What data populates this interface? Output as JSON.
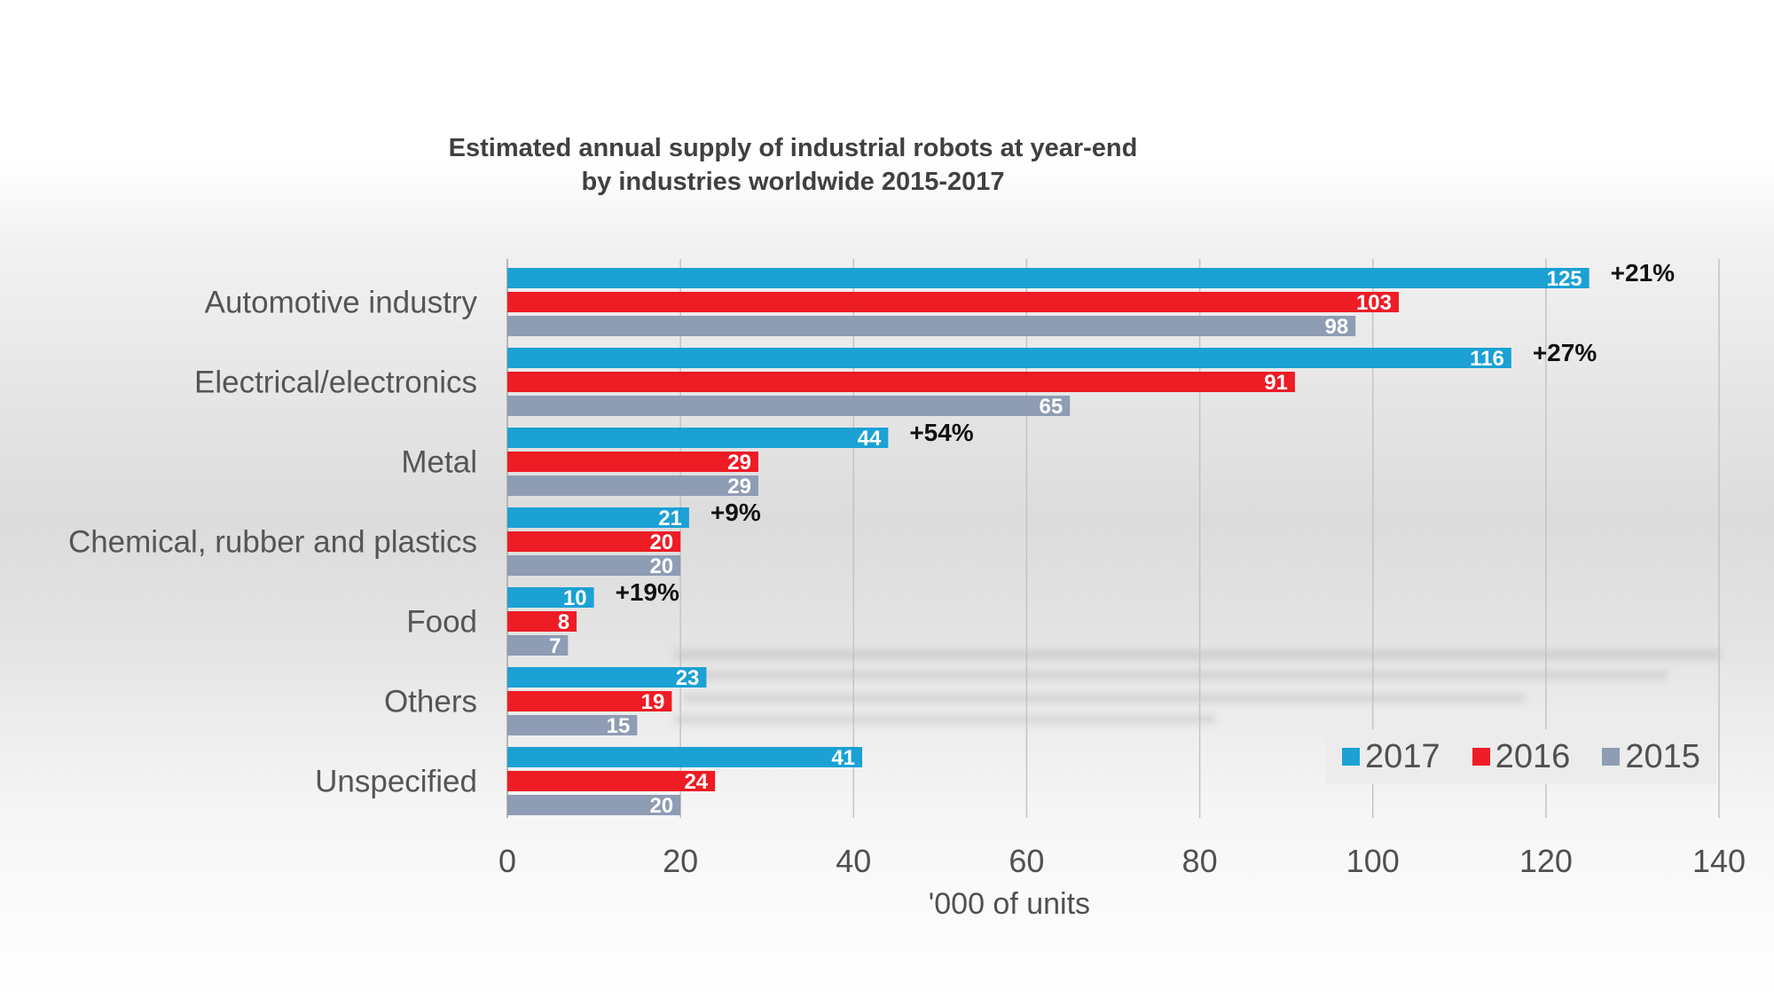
{
  "chart_data": {
    "type": "bar",
    "orientation": "horizontal",
    "title": [
      "Estimated annual supply of industrial robots at year-end",
      "by industries worldwide 2015-2017"
    ],
    "xlabel": "'000 of units",
    "xlim": [
      0,
      140
    ],
    "xticks": [
      0,
      20,
      40,
      60,
      80,
      100,
      120,
      140
    ],
    "grid": "vertical",
    "legend_position": "bottom-right",
    "categories": [
      "Automotive industry",
      "Electrical/electronics",
      "Metal",
      "Chemical, rubber and plastics",
      "Food",
      "Others",
      "Unspecified"
    ],
    "series": [
      {
        "name": "2017",
        "color": "#1ba1d4",
        "values": [
          125,
          116,
          44,
          21,
          10,
          23,
          41
        ]
      },
      {
        "name": "2016",
        "color": "#ee1c25",
        "values": [
          103,
          91,
          29,
          20,
          8,
          19,
          24
        ]
      },
      {
        "name": "2015",
        "color": "#8e9cb4",
        "values": [
          98,
          65,
          29,
          20,
          7,
          15,
          20
        ]
      }
    ],
    "growth_labels": [
      "+21%",
      "+27%",
      "+54%",
      "+9%",
      "+19%",
      "",
      ""
    ]
  }
}
